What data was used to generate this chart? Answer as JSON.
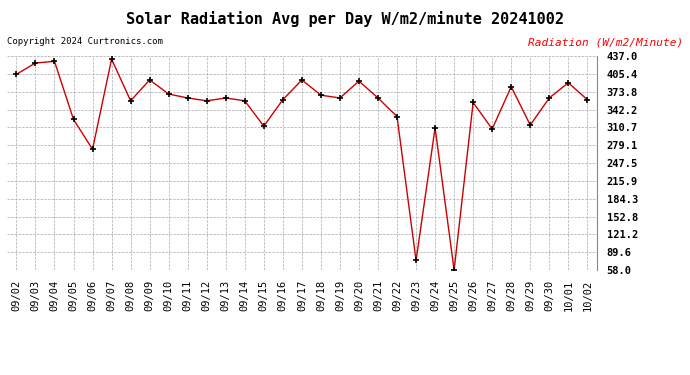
{
  "title": "Solar Radiation Avg per Day W/m2/minute 20241002",
  "copyright": "Copyright 2024 Curtronics.com",
  "legend_label": "Radiation (W/m2/Minute)",
  "dates": [
    "09/02",
    "09/03",
    "09/04",
    "09/05",
    "09/06",
    "09/07",
    "09/08",
    "09/09",
    "09/10",
    "09/11",
    "09/12",
    "09/13",
    "09/14",
    "09/15",
    "09/16",
    "09/17",
    "09/18",
    "09/19",
    "09/20",
    "09/21",
    "09/22",
    "09/23",
    "09/24",
    "09/25",
    "09/26",
    "09/27",
    "09/28",
    "09/29",
    "09/30",
    "10/01",
    "10/02"
  ],
  "values": [
    405.0,
    425.0,
    428.0,
    325.0,
    272.0,
    432.0,
    358.0,
    395.0,
    370.0,
    363.0,
    358.0,
    363.0,
    358.0,
    313.0,
    360.0,
    395.0,
    368.0,
    363.0,
    393.0,
    363.0,
    330.0,
    75.0,
    310.0,
    58.0,
    355.0,
    308.0,
    383.0,
    315.0,
    363.0,
    390.0,
    360.0
  ],
  "ymin": 58.0,
  "ymax": 437.0,
  "yticks": [
    58.0,
    89.6,
    121.2,
    152.8,
    184.3,
    215.9,
    247.5,
    279.1,
    310.7,
    342.2,
    373.8,
    405.4,
    437.0
  ],
  "line_color": "#cc0000",
  "marker_color": "#000000",
  "bg_color": "#ffffff",
  "grid_color": "#aaaaaa",
  "title_fontsize": 11,
  "tick_fontsize": 7.5
}
